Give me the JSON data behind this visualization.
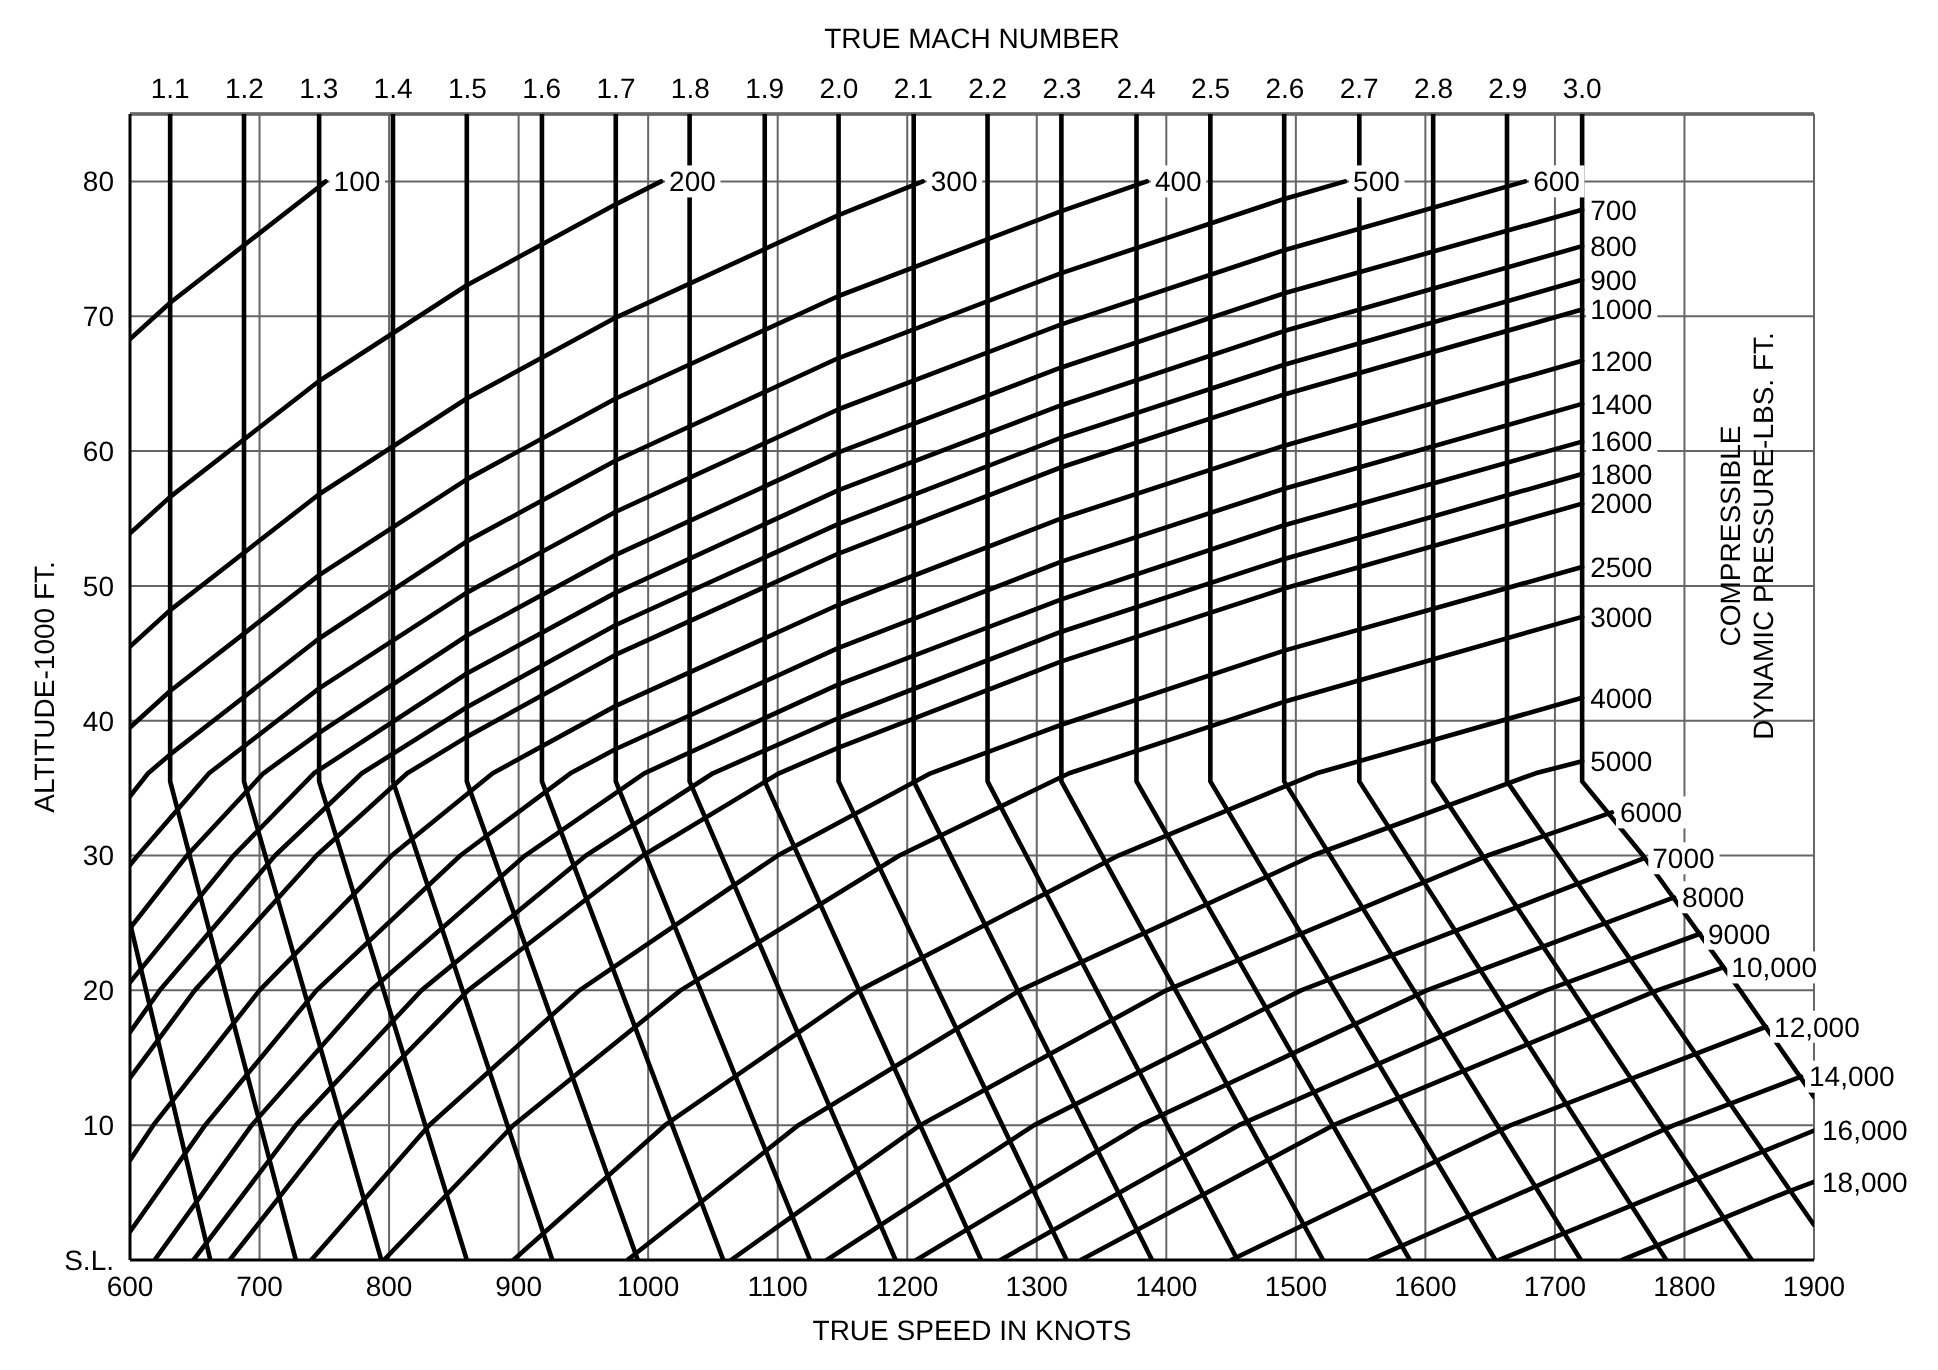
{
  "chart_data": {
    "type": "line",
    "xlabel": "TRUE SPEED IN KNOTS",
    "ylabel": "ALTITUDE-1000 FT.",
    "x2label": "TRUE MACH NUMBER",
    "annotations": [
      "COMPRESSIBLE DYNAMIC PRESSURE-LBS. FT."
    ],
    "xlim": [
      600,
      1900
    ],
    "xticks": [
      600,
      700,
      800,
      900,
      1000,
      1100,
      1200,
      1300,
      1400,
      1500,
      1600,
      1700,
      1800,
      1900
    ],
    "ylim": [
      0,
      85
    ],
    "yticks": [
      {
        "value": 0,
        "label": "S.L."
      },
      10,
      20,
      30,
      40,
      50,
      60,
      70,
      80
    ],
    "x2lim": [
      1.046,
      3.312
    ],
    "x2ticks": [
      1.1,
      1.2,
      1.3,
      1.4,
      1.5,
      1.6,
      1.7,
      1.8,
      1.9,
      {
        "value": 2.0,
        "label": "2.0"
      },
      2.1,
      2.2,
      2.3,
      2.4,
      2.5,
      2.6,
      2.7,
      2.8,
      2.9,
      {
        "value": 3.0,
        "label": "3.0"
      }
    ],
    "grid": true,
    "marker": "none",
    "line_style": "solid",
    "series": [
      {
        "color": "#000000",
        "x": [
          600,
          662
        ],
        "values": [
          25,
          0
        ]
      },
      {
        "color": "#000000",
        "x": [
          631,
          631,
          728
        ],
        "values": [
          85,
          35.5,
          0
        ]
      },
      {
        "color": "#000000",
        "x": [
          688,
          688,
          794
        ],
        "values": [
          85,
          35.5,
          0
        ]
      },
      {
        "color": "#000000",
        "x": [
          746,
          746,
          860
        ],
        "values": [
          85,
          35.5,
          0
        ]
      },
      {
        "color": "#000000",
        "x": [
          803,
          803,
          926
        ],
        "values": [
          85,
          35.5,
          0
        ]
      },
      {
        "color": "#000000",
        "x": [
          860,
          860,
          992
        ],
        "values": [
          85,
          35.5,
          0
        ]
      },
      {
        "color": "#000000",
        "x": [
          918,
          918,
          1058
        ],
        "values": [
          85,
          35.5,
          0
        ]
      },
      {
        "color": "#000000",
        "x": [
          975,
          975,
          1125
        ],
        "values": [
          85,
          35.5,
          0
        ]
      },
      {
        "color": "#000000",
        "x": [
          1032,
          1032,
          1191
        ],
        "values": [
          85,
          35.5,
          0
        ]
      },
      {
        "color": "#000000",
        "x": [
          1090,
          1090,
          1257
        ],
        "values": [
          85,
          35.5,
          0
        ]
      },
      {
        "color": "#000000",
        "x": [
          1147,
          1147,
          1323
        ],
        "values": [
          85,
          35.5,
          0
        ]
      },
      {
        "color": "#000000",
        "x": [
          1205,
          1205,
          1389
        ],
        "values": [
          85,
          35.5,
          0
        ]
      },
      {
        "color": "#000000",
        "x": [
          1262,
          1262,
          1455
        ],
        "values": [
          85,
          35.5,
          0
        ]
      },
      {
        "color": "#000000",
        "x": [
          1319,
          1319,
          1521
        ],
        "values": [
          85,
          35.5,
          0
        ]
      },
      {
        "color": "#000000",
        "x": [
          1377,
          1377,
          1588
        ],
        "values": [
          85,
          35.5,
          0
        ]
      },
      {
        "color": "#000000",
        "x": [
          1434,
          1434,
          1654
        ],
        "values": [
          85,
          35.5,
          0
        ]
      },
      {
        "color": "#000000",
        "x": [
          1491,
          1491,
          1720
        ],
        "values": [
          85,
          35.5,
          0
        ]
      },
      {
        "color": "#000000",
        "x": [
          1549,
          1549,
          1786
        ],
        "values": [
          85,
          35.5,
          0
        ]
      },
      {
        "color": "#000000",
        "x": [
          1606,
          1606,
          1852
        ],
        "values": [
          85,
          35.5,
          0
        ]
      },
      {
        "color": "#000000",
        "x": [
          1663,
          1663,
          1900
        ],
        "values": [
          85,
          35.5,
          2.6
        ]
      },
      {
        "color": "#000000",
        "x": [
          1721,
          1721,
          1768,
          1843,
          1900
        ],
        "values": [
          85,
          35.5,
          30,
          20,
          12.1
        ]
      },
      {
        "name": "100",
        "color": "#000000",
        "x": [
          600,
          631,
          746,
          751
        ],
        "values": [
          68.3,
          71.0,
          79.6,
          80
        ]
      },
      {
        "name": "200",
        "color": "#000000",
        "x": [
          600,
          631,
          746,
          860,
          975,
          1010
        ],
        "values": [
          53.9,
          56.6,
          65.2,
          72.3,
          78.3,
          80
        ]
      },
      {
        "name": "300",
        "color": "#000000",
        "x": [
          600,
          631,
          746,
          860,
          975,
          1147,
          1212
        ],
        "values": [
          45.5,
          48.2,
          56.8,
          63.9,
          69.9,
          77.5,
          80
        ]
      },
      {
        "name": "400",
        "color": "#000000",
        "x": [
          600,
          631,
          746,
          860,
          975,
          1147,
          1319,
          1385
        ],
        "values": [
          39.5,
          42.2,
          50.8,
          57.9,
          63.9,
          71.5,
          77.8,
          80
        ]
      },
      {
        "name": "500",
        "color": "#000000",
        "x": [
          600,
          614,
          631,
          746,
          860,
          975,
          1147,
          1319,
          1491,
          1538
        ],
        "values": [
          34.4,
          36.1,
          37.5,
          46.1,
          53.3,
          59.3,
          66.9,
          73.2,
          78.7,
          80
        ]
      },
      {
        "name": "600",
        "color": "#000000",
        "x": [
          600,
          606,
          661,
          746,
          860,
          975,
          1147,
          1319,
          1491,
          1677
        ],
        "values": [
          29.3,
          30,
          36.1,
          42.4,
          49.5,
          55.5,
          63.1,
          69.4,
          74.9,
          80
        ]
      },
      {
        "name": "700",
        "color": "#000000",
        "x": [
          600,
          644,
          703,
          746,
          860,
          975,
          1147,
          1319,
          1491,
          1721
        ],
        "values": [
          24.6,
          30,
          36.1,
          39.1,
          46.3,
          52.3,
          59.9,
          66.2,
          71.7,
          77.9
        ]
      },
      {
        "name": "800",
        "color": "#000000",
        "x": [
          600,
          680,
          742,
          860,
          975,
          1147,
          1319,
          1491,
          1721
        ],
        "values": [
          20.6,
          30,
          36.1,
          43.5,
          49.5,
          57.1,
          63.4,
          68.9,
          75.2
        ]
      },
      {
        "name": "900",
        "color": "#000000",
        "x": [
          600,
          623,
          712,
          779,
          860,
          975,
          1147,
          1319,
          1491,
          1721
        ],
        "values": [
          16.9,
          20,
          30,
          36.1,
          41.0,
          47.1,
          54.6,
          61.0,
          66.4,
          72.7
        ]
      },
      {
        "name": "1000",
        "color": "#000000",
        "x": [
          600,
          650,
          744,
          814,
          860,
          975,
          1147,
          1319,
          1491,
          1721
        ],
        "values": [
          13.5,
          20,
          30,
          36.1,
          38.8,
          44.9,
          52.4,
          58.8,
          64.2,
          70.5
        ]
      },
      {
        "name": "1200",
        "color": "#000000",
        "x": [
          600,
          618,
          700,
          802,
          880,
          975,
          1147,
          1319,
          1491,
          1721
        ],
        "values": [
          7.4,
          10,
          20,
          30,
          36.1,
          41.1,
          48.6,
          55.0,
          60.4,
          66.7
        ]
      },
      {
        "name": "1400",
        "color": "#000000",
        "x": [
          600,
          658,
          744,
          855,
          940,
          975,
          1147,
          1319,
          1491,
          1721
        ],
        "values": [
          2.1,
          10,
          20,
          30,
          36.1,
          37.9,
          45.4,
          51.8,
          57.2,
          63.5
        ]
      },
      {
        "name": "1600",
        "color": "#000000",
        "x": [
          619,
          694,
          786,
          905,
          997,
          1147,
          1319,
          1491,
          1721
        ],
        "values": [
          0,
          10,
          20,
          30,
          36.1,
          42.7,
          49.0,
          54.5,
          60.7
        ]
      },
      {
        "name": "1800",
        "color": "#000000",
        "x": [
          649,
          728,
          825,
          952,
          1050,
          1147,
          1319,
          1491,
          1721
        ],
        "values": [
          0,
          10,
          20,
          30,
          36.1,
          40.2,
          46.6,
          52.0,
          58.3
        ]
      },
      {
        "name": "2000",
        "color": "#000000",
        "x": [
          677,
          759,
          861,
          996,
          1101,
          1147,
          1319,
          1491,
          1721
        ],
        "values": [
          0,
          10,
          20,
          30,
          36.1,
          38.0,
          44.4,
          49.8,
          56.1
        ]
      },
      {
        "name": "2500",
        "color": "#000000",
        "x": [
          740,
          831,
          947,
          1100,
          1218,
          1319,
          1491,
          1721
        ],
        "values": [
          0,
          10,
          20,
          30,
          36.1,
          39.7,
          45.2,
          51.4
        ]
      },
      {
        "name": "3000",
        "color": "#000000",
        "x": [
          796,
          896,
          1025,
          1194,
          1325,
          1491,
          1721
        ],
        "values": [
          0,
          10,
          20,
          30,
          36.1,
          41.4,
          47.7
        ]
      },
      {
        "name": "4000",
        "color": "#000000",
        "x": [
          896,
          1013,
          1163,
          1363,
          1516,
          1721
        ],
        "values": [
          0,
          10,
          20,
          30,
          36.1,
          41.7
        ]
      },
      {
        "name": "5000",
        "color": "#000000",
        "x": [
          984,
          1116,
          1287,
          1513,
          1685,
          1721
        ],
        "values": [
          0,
          10,
          20,
          30,
          36.1,
          37.0
        ]
      },
      {
        "name": "6000",
        "color": "#000000",
        "x": [
          1064,
          1210,
          1400,
          1648,
          1744
        ],
        "values": [
          0,
          10,
          20,
          30,
          33.2
        ]
      },
      {
        "name": "7000",
        "color": "#000000",
        "x": [
          1138,
          1298,
          1504,
          1769
        ],
        "values": [
          0,
          10,
          20,
          29.8
        ]
      },
      {
        "name": "8000",
        "color": "#000000",
        "x": [
          1207,
          1380,
          1601,
          1792
        ],
        "values": [
          0,
          10,
          20,
          26.9
        ]
      },
      {
        "name": "9000",
        "color": "#000000",
        "x": [
          1272,
          1456,
          1693,
          1812
        ],
        "values": [
          0,
          10,
          20,
          24.2
        ]
      },
      {
        "name": "10,000",
        "color": "#000000",
        "x": [
          1334,
          1529,
          1779,
          1830
        ],
        "values": [
          0,
          10,
          20,
          21.7
        ]
      },
      {
        "name": "12,000",
        "color": "#000000",
        "x": [
          1450,
          1666,
          1863
        ],
        "values": [
          0,
          10,
          17.3
        ]
      },
      {
        "name": "14,000",
        "color": "#000000",
        "x": [
          1557,
          1792,
          1890
        ],
        "values": [
          0,
          10,
          13.6
        ]
      },
      {
        "name": "16,000",
        "color": "#000000",
        "x": [
          1657,
          1900
        ],
        "values": [
          0,
          9.6
        ]
      },
      {
        "name": "18,000",
        "color": "#000000",
        "x": [
          1752,
          1878,
          1900
        ],
        "values": [
          0,
          5,
          5.8
        ]
      }
    ]
  }
}
